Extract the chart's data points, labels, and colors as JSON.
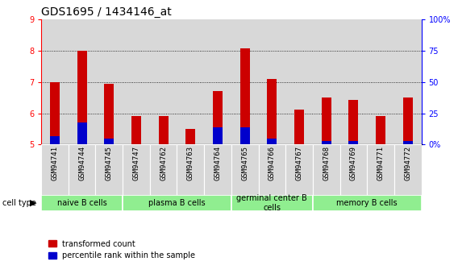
{
  "title": "GDS1695 / 1434146_at",
  "samples": [
    "GSM94741",
    "GSM94744",
    "GSM94745",
    "GSM94747",
    "GSM94762",
    "GSM94763",
    "GSM94764",
    "GSM94765",
    "GSM94766",
    "GSM94767",
    "GSM94768",
    "GSM94769",
    "GSM94771",
    "GSM94772"
  ],
  "transformed_count": [
    7.0,
    8.0,
    6.95,
    5.9,
    5.9,
    5.5,
    6.72,
    8.07,
    7.1,
    6.12,
    6.5,
    6.42,
    5.9,
    6.5
  ],
  "percentile_rank": [
    5.27,
    5.7,
    5.18,
    5.02,
    5.02,
    5.0,
    5.55,
    5.55,
    5.2,
    5.0,
    5.12,
    5.12,
    5.0,
    5.12
  ],
  "ylim_left": [
    5,
    9
  ],
  "ylim_right": [
    0,
    100
  ],
  "yticks_left": [
    5,
    6,
    7,
    8,
    9
  ],
  "yticks_right": [
    0,
    25,
    50,
    75,
    100
  ],
  "ytick_labels_right": [
    "0%",
    "25",
    "50",
    "75",
    "100%"
  ],
  "cell_groups": [
    {
      "label": "naive B cells",
      "start": 0,
      "end": 3
    },
    {
      "label": "plasma B cells",
      "start": 3,
      "end": 7
    },
    {
      "label": "germinal center B\ncells",
      "start": 7,
      "end": 10
    },
    {
      "label": "memory B cells",
      "start": 10,
      "end": 14
    }
  ],
  "bar_color_red": "#cc0000",
  "bar_color_blue": "#0000cc",
  "bar_width": 0.35,
  "col_bg_color": "#d8d8d8",
  "cell_group_color": "#90ee90",
  "cell_type_label": "cell type",
  "legend_red": "transformed count",
  "legend_blue": "percentile rank within the sample",
  "title_fontsize": 10,
  "tick_fontsize": 7,
  "label_fontsize": 7,
  "group_fontsize": 7
}
